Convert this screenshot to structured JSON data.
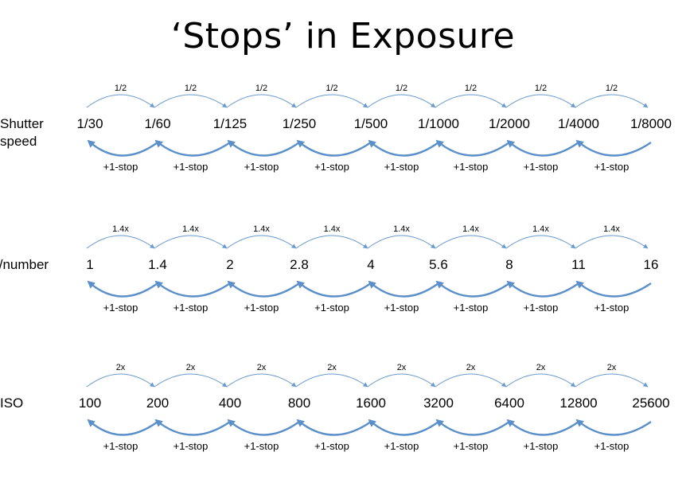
{
  "title": "‘Stops’ in Exposure",
  "arc_top_color": "#6a9bd0",
  "arc_bottom_color": "#5b8fc9",
  "rows": [
    {
      "label_lines": [
        "Shutter",
        "speed"
      ],
      "values": [
        "1/30",
        "1/60",
        "1/125",
        "1/250",
        "1/500",
        "1/1000",
        "1/2000",
        "1/4000",
        "1/8000"
      ],
      "top_label": "1/2",
      "bottom_label": "+1-stop"
    },
    {
      "label_lines": [
        "f/number"
      ],
      "values": [
        "1",
        "1.4",
        "2",
        "2.8",
        "4",
        "5.6",
        "8",
        "11",
        "16"
      ],
      "top_label": "1.4x",
      "bottom_label": "+1-stop"
    },
    {
      "label_lines": [
        "ISO"
      ],
      "values": [
        "100",
        "200",
        "400",
        "800",
        "1600",
        "3200",
        "6400",
        "12800",
        "25600"
      ],
      "top_label": "2x",
      "bottom_label": "+1-stop"
    }
  ]
}
